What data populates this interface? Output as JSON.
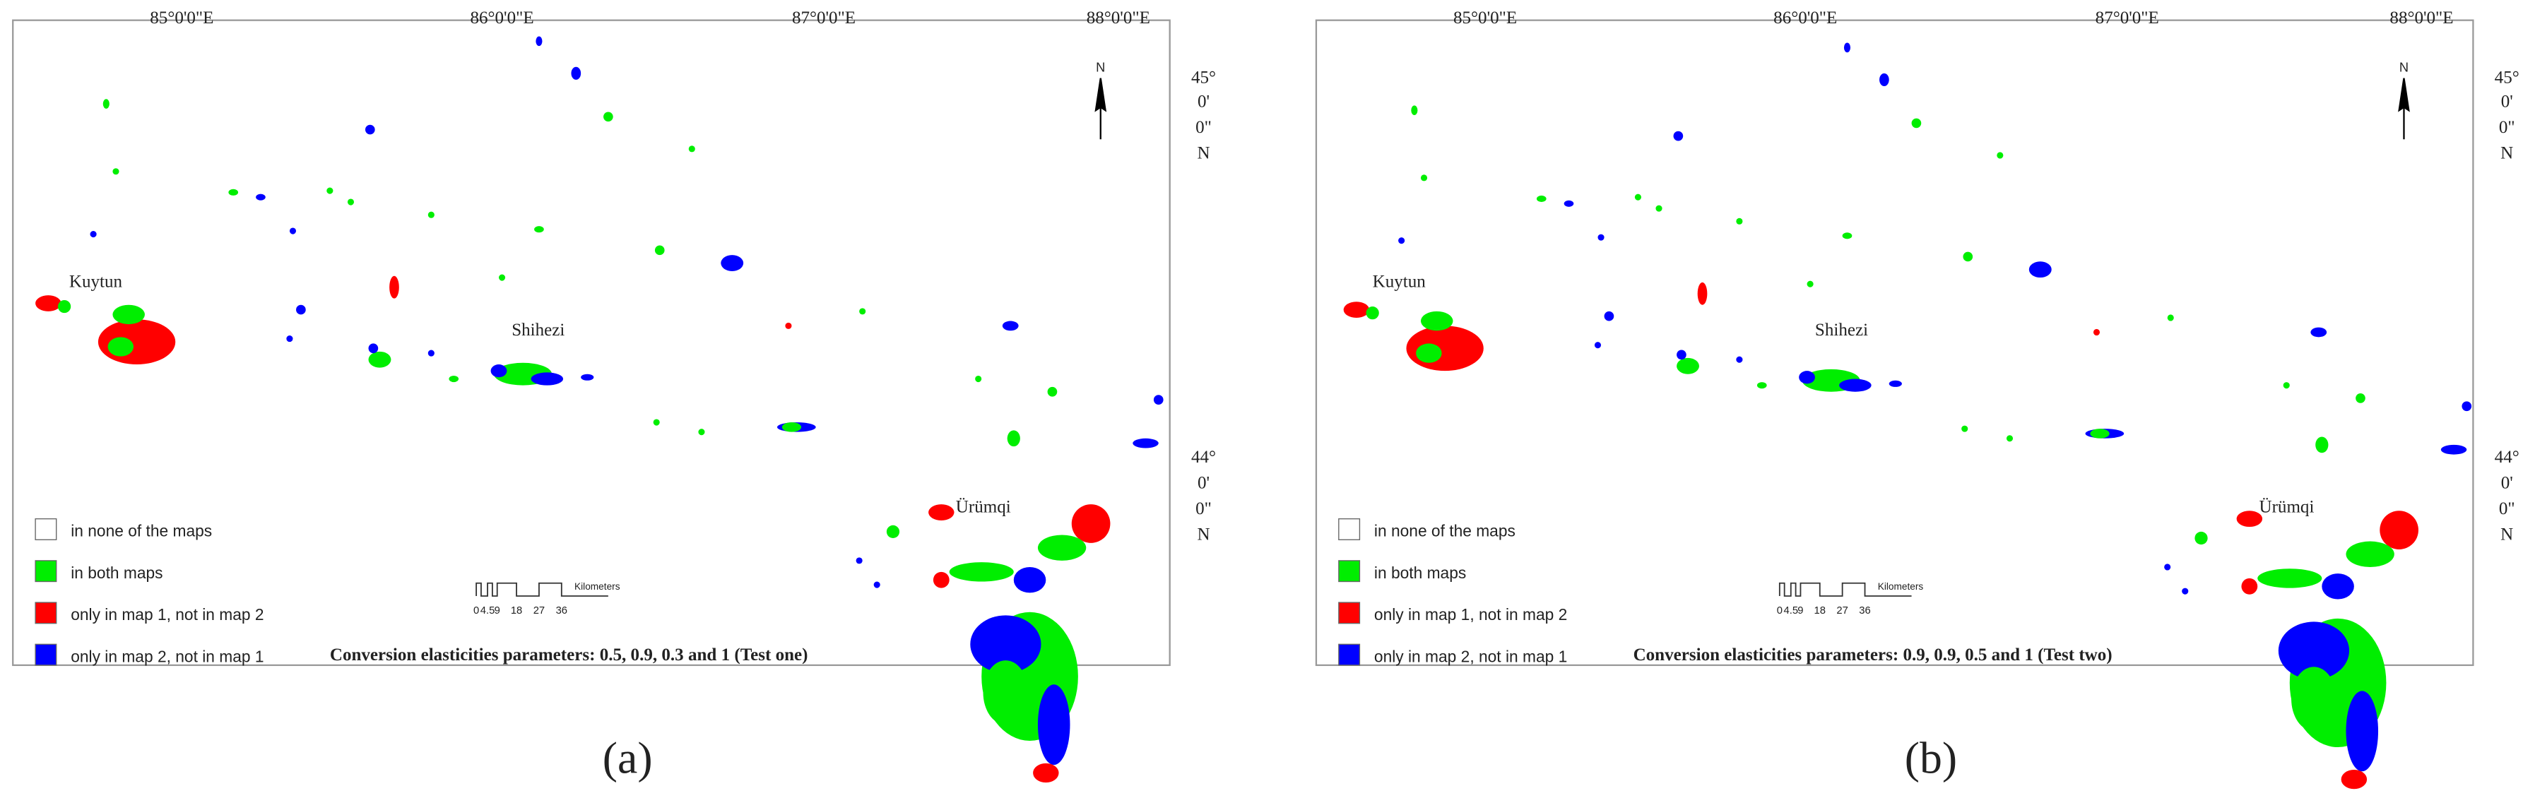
{
  "map": {
    "longitude_labels": [
      "85°0'0\"E",
      "86°0'0\"E",
      "87°0'0\"E",
      "88°0'0\"E"
    ],
    "latitude_labels": [
      [
        "45°",
        "0'",
        "0\"",
        "N"
      ],
      [
        "44°",
        "0'",
        "0\"",
        "N"
      ]
    ],
    "north": "N",
    "places": [
      "Kuytun",
      "Shihezi",
      "Ürümqi"
    ],
    "legend": [
      "in none of the maps",
      "in both maps",
      "only in map 1, not in map 2",
      "only in map 2, not in map 1"
    ],
    "scale_labels": [
      "0",
      "4.5",
      "9",
      "18",
      "27",
      "36"
    ],
    "scale_unit": "Kilometers"
  },
  "panels": [
    {
      "label": "(a)",
      "caption": "Conversion elasticities parameters: 0.5, 0.9, 0.3 and 1 (Test one)"
    },
    {
      "label": "(b)",
      "caption": "Conversion elasticities parameters: 0.9, 0.9, 0.5 and 1 (Test two)"
    }
  ]
}
